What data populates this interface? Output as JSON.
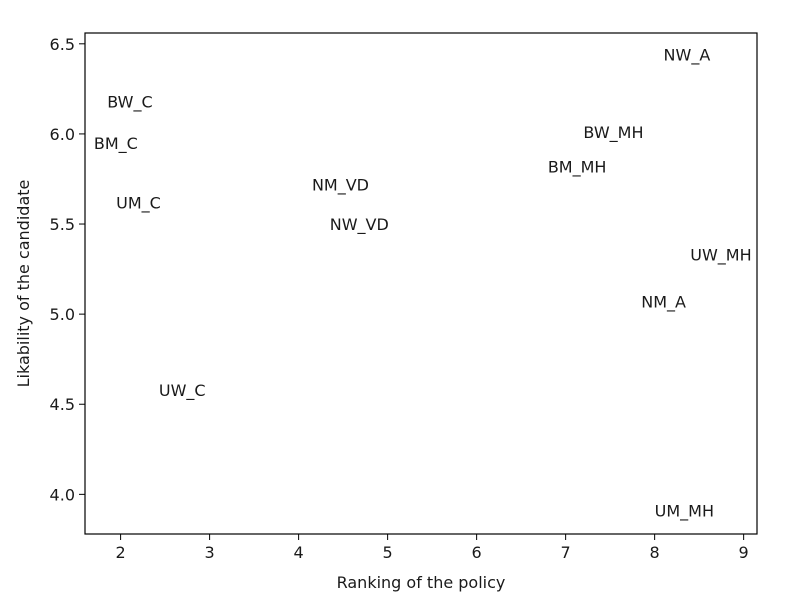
{
  "chart_data": {
    "type": "scatter",
    "title": "",
    "xlabel": "Ranking of the policy",
    "ylabel": "Likability of the candidate",
    "xlim": [
      1.6,
      9.15
    ],
    "ylim": [
      3.78,
      6.56
    ],
    "grid": false,
    "xticks": [
      2,
      3,
      4,
      5,
      6,
      7,
      8,
      9
    ],
    "xtick_labels": [
      "2",
      "3",
      "4",
      "5",
      "6",
      "7",
      "8",
      "9"
    ],
    "yticks": [
      4.0,
      4.5,
      5.0,
      5.5,
      6.0,
      6.5
    ],
    "ytick_labels": [
      "4.0",
      "4.5",
      "5.0",
      "5.5",
      "6.0",
      "6.5"
    ],
    "points": [
      {
        "label": "NW_A",
        "x": 8.1,
        "y": 6.44
      },
      {
        "label": "BW_C",
        "x": 1.85,
        "y": 6.18
      },
      {
        "label": "BM_C",
        "x": 1.7,
        "y": 5.95
      },
      {
        "label": "BW_MH",
        "x": 7.2,
        "y": 6.01
      },
      {
        "label": "BM_MH",
        "x": 6.8,
        "y": 5.82
      },
      {
        "label": "NM_VD",
        "x": 4.15,
        "y": 5.72
      },
      {
        "label": "UM_C",
        "x": 1.95,
        "y": 5.62
      },
      {
        "label": "NW_VD",
        "x": 4.35,
        "y": 5.5
      },
      {
        "label": "UW_MH",
        "x": 8.4,
        "y": 5.33
      },
      {
        "label": "NM_A",
        "x": 7.85,
        "y": 5.07
      },
      {
        "label": "UW_C",
        "x": 2.43,
        "y": 4.58
      },
      {
        "label": "UM_MH",
        "x": 8.0,
        "y": 3.91
      }
    ]
  }
}
